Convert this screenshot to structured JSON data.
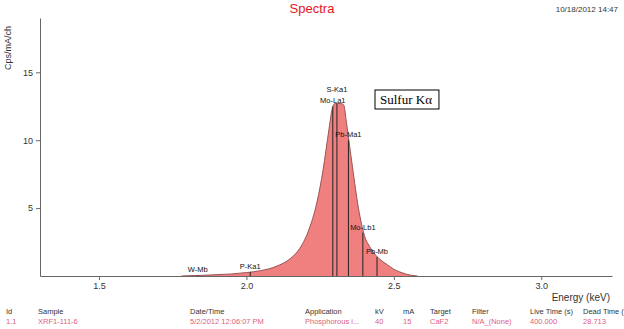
{
  "chart_data": {
    "type": "area",
    "title": "Spectra",
    "subtitle": "10/18/2012 14:47",
    "x_label": "Energy (keV)",
    "y_label": "Cps/mA/ch",
    "x": [
      1.78,
      1.85,
      1.9,
      1.95,
      2.0,
      2.05,
      2.1,
      2.15,
      2.18,
      2.21,
      2.24,
      2.26,
      2.28,
      2.29,
      2.3,
      2.31,
      2.32,
      2.33,
      2.34,
      2.35,
      2.36,
      2.38,
      2.4,
      2.42,
      2.44,
      2.46,
      2.48,
      2.5,
      2.52,
      2.54,
      2.56,
      2.58
    ],
    "values": [
      0,
      0.05,
      0.1,
      0.15,
      0.25,
      0.4,
      0.7,
      1.3,
      2.0,
      3.3,
      5.5,
      7.8,
      10.8,
      12.2,
      12.7,
      12.7,
      12.7,
      12.6,
      11.2,
      9.6,
      8.0,
      5.0,
      3.0,
      2.1,
      1.5,
      1.1,
      0.8,
      0.5,
      0.3,
      0.15,
      0.05,
      0
    ],
    "color": "#f08080",
    "xlim": [
      1.3,
      3.24
    ],
    "ylim": [
      0,
      19
    ],
    "xticks": [
      1.5,
      {
        "value": 2,
        "label": "2.0"
      },
      2.5,
      {
        "value": 3,
        "label": "3.0"
      }
    ],
    "yticks": [
      5,
      10,
      15
    ],
    "grid": false,
    "markers": [
      {
        "label": "W-Mb",
        "x": 1.835,
        "y": 0.04
      },
      {
        "label": "P-Ka1",
        "x": 2.013,
        "y": 0.3
      },
      {
        "label": "Mo-La1",
        "x": 2.293,
        "y": 12.5
      },
      {
        "label": "S-Ka1",
        "x": 2.307,
        "y": 12.7
      },
      {
        "label": "Pb-Ma1",
        "x": 2.346,
        "y": 10
      },
      {
        "label": "Mo-Lb1",
        "x": 2.395,
        "y": 3.2
      },
      {
        "label": "Pb-Mb",
        "x": 2.443,
        "y": 1.4
      }
    ],
    "annotations": [
      "Sulfur Kα"
    ],
    "table": {
      "columns": [
        "Id",
        "Sample",
        "Date/Time",
        "Application",
        "kV",
        "mA",
        "Target",
        "Filter",
        "Live Time (s)",
        "Dead Time (%)"
      ],
      "rows": [
        [
          "1.1",
          "XRF1-111-6",
          "5/2/2012 12:06:07 PM",
          "Phosphorous i...",
          "40",
          "15",
          "CaF2",
          "N/A_(None)",
          "400.000",
          "28.713"
        ]
      ]
    }
  }
}
